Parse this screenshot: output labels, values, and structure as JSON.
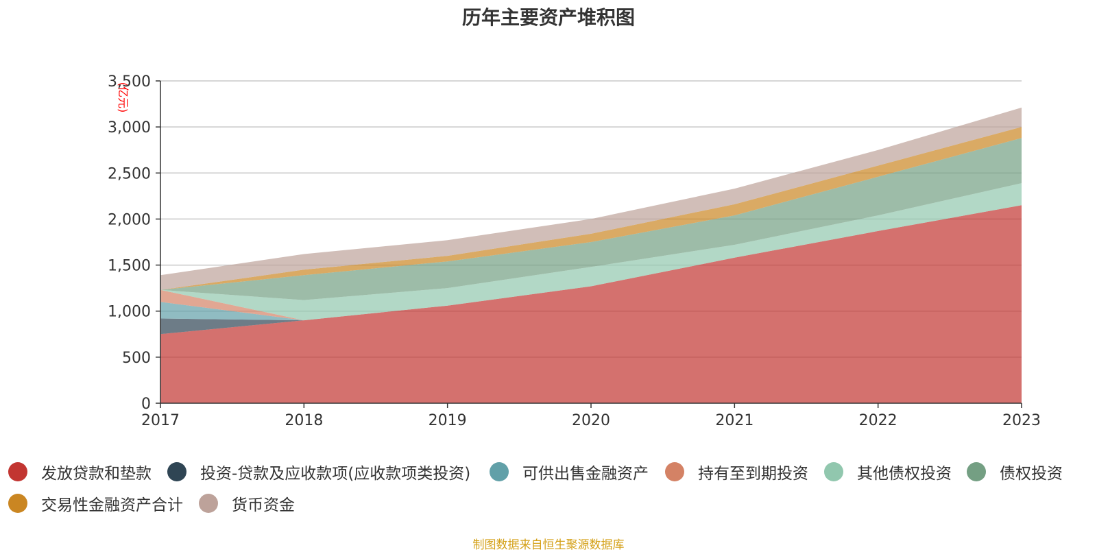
{
  "footer": {
    "source": "制图数据来自恒生聚源数据库"
  },
  "chart_data": {
    "type": "area",
    "stacked": true,
    "title": "历年主要资产堆积图",
    "ylabel": "(亿元)",
    "ylim": [
      0,
      3500
    ],
    "yticks": [
      0,
      500,
      1000,
      1500,
      2000,
      2500,
      3000,
      3500
    ],
    "ytick_labels": [
      "0",
      "500",
      "1,000",
      "1,500",
      "2,000",
      "2,500",
      "3,000",
      "3,500"
    ],
    "categories": [
      "2017",
      "2018",
      "2019",
      "2020",
      "2021",
      "2022",
      "2023"
    ],
    "grid": true,
    "legend_position": "bottom",
    "series": [
      {
        "name": "发放贷款和垫款",
        "color": "#c23531",
        "values": [
          750,
          900,
          1060,
          1270,
          1580,
          1870,
          2150
        ]
      },
      {
        "name": "投资-贷款及应收款项(应收款项类投资)",
        "color": "#2f4554",
        "values": [
          170,
          0,
          0,
          0,
          0,
          0,
          0
        ]
      },
      {
        "name": "可供出售金融资产",
        "color": "#61a0a8",
        "values": [
          180,
          0,
          0,
          0,
          0,
          0,
          0
        ]
      },
      {
        "name": "持有至到期投资",
        "color": "#d48265",
        "values": [
          130,
          0,
          0,
          0,
          0,
          0,
          0
        ]
      },
      {
        "name": "其他债权投资",
        "color": "#91c7ae",
        "values": [
          0,
          220,
          190,
          210,
          140,
          170,
          240
        ]
      },
      {
        "name": "债权投资",
        "color": "#749f83",
        "values": [
          0,
          270,
          290,
          270,
          320,
          420,
          490
        ]
      },
      {
        "name": "交易性金融资产合计",
        "color": "#ca8622",
        "values": [
          0,
          60,
          60,
          90,
          120,
          120,
          120
        ]
      },
      {
        "name": "货币资金",
        "color": "#bda29a",
        "values": [
          160,
          170,
          170,
          160,
          170,
          170,
          210
        ]
      }
    ]
  }
}
